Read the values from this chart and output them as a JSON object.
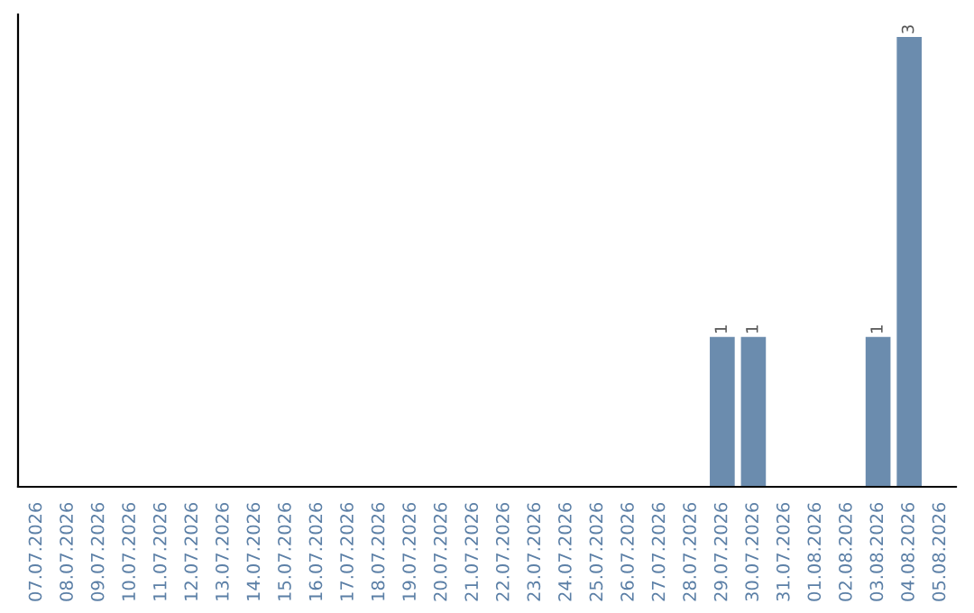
{
  "chart_data": {
    "type": "bar",
    "categories": [
      "07.07.2026",
      "08.07.2026",
      "09.07.2026",
      "10.07.2026",
      "11.07.2026",
      "12.07.2026",
      "13.07.2026",
      "14.07.2026",
      "15.07.2026",
      "16.07.2026",
      "17.07.2026",
      "18.07.2026",
      "19.07.2026",
      "20.07.2026",
      "21.07.2026",
      "22.07.2026",
      "23.07.2026",
      "24.07.2026",
      "25.07.2026",
      "26.07.2026",
      "27.07.2026",
      "28.07.2026",
      "29.07.2026",
      "30.07.2026",
      "31.07.2026",
      "01.08.2026",
      "02.08.2026",
      "03.08.2026",
      "04.08.2026",
      "05.08.2026"
    ],
    "values": [
      null,
      null,
      null,
      null,
      null,
      null,
      null,
      null,
      null,
      null,
      null,
      null,
      null,
      null,
      null,
      null,
      null,
      null,
      null,
      null,
      null,
      null,
      1,
      1,
      null,
      null,
      null,
      1,
      3,
      null
    ],
    "value_labels": [
      null,
      null,
      null,
      null,
      null,
      null,
      null,
      null,
      null,
      null,
      null,
      null,
      null,
      null,
      null,
      null,
      null,
      null,
      null,
      null,
      null,
      null,
      "1",
      "1",
      null,
      null,
      null,
      "1",
      "3",
      null
    ],
    "color": "#6b8cae",
    "tick_labels": "x",
    "grid": false,
    "legend": false
  }
}
